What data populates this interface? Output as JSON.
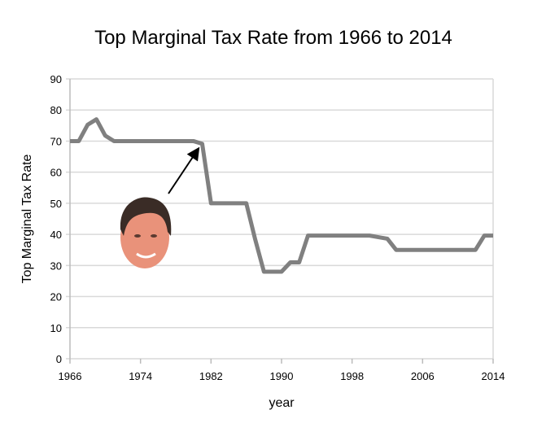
{
  "chart_data": {
    "type": "line",
    "title": "Top Marginal Tax Rate from 1966 to 2014",
    "xlabel": "year",
    "ylabel": "Top Marginal Tax Rate",
    "xlim": [
      1966,
      2014
    ],
    "ylim": [
      0,
      90
    ],
    "xticks": [
      1966,
      1974,
      1982,
      1990,
      1998,
      2006,
      2014
    ],
    "yticks": [
      0,
      10,
      20,
      30,
      40,
      50,
      60,
      70,
      80,
      90
    ],
    "grid": true,
    "line_color": "#808080",
    "x": [
      1966,
      1967,
      1968,
      1969,
      1970,
      1971,
      1972,
      1973,
      1974,
      1975,
      1976,
      1977,
      1978,
      1979,
      1980,
      1981,
      1982,
      1983,
      1984,
      1985,
      1986,
      1987,
      1988,
      1989,
      1990,
      1991,
      1992,
      1993,
      1994,
      1995,
      1996,
      1997,
      1998,
      1999,
      2000,
      2001,
      2002,
      2003,
      2004,
      2005,
      2006,
      2007,
      2008,
      2009,
      2010,
      2011,
      2012,
      2013,
      2014
    ],
    "y": [
      70,
      70,
      75.25,
      77,
      71.75,
      70,
      70,
      70,
      70,
      70,
      70,
      70,
      70,
      70,
      70,
      69.13,
      50,
      50,
      50,
      50,
      50,
      38.5,
      28,
      28,
      28,
      31,
      31,
      39.6,
      39.6,
      39.6,
      39.6,
      39.6,
      39.6,
      39.6,
      39.6,
      39.1,
      38.6,
      35,
      35,
      35,
      35,
      35,
      35,
      35,
      35,
      35,
      35,
      39.6,
      39.6
    ],
    "annotation": {
      "type": "arrow-with-portrait",
      "x": 1981,
      "y": 69
    }
  }
}
